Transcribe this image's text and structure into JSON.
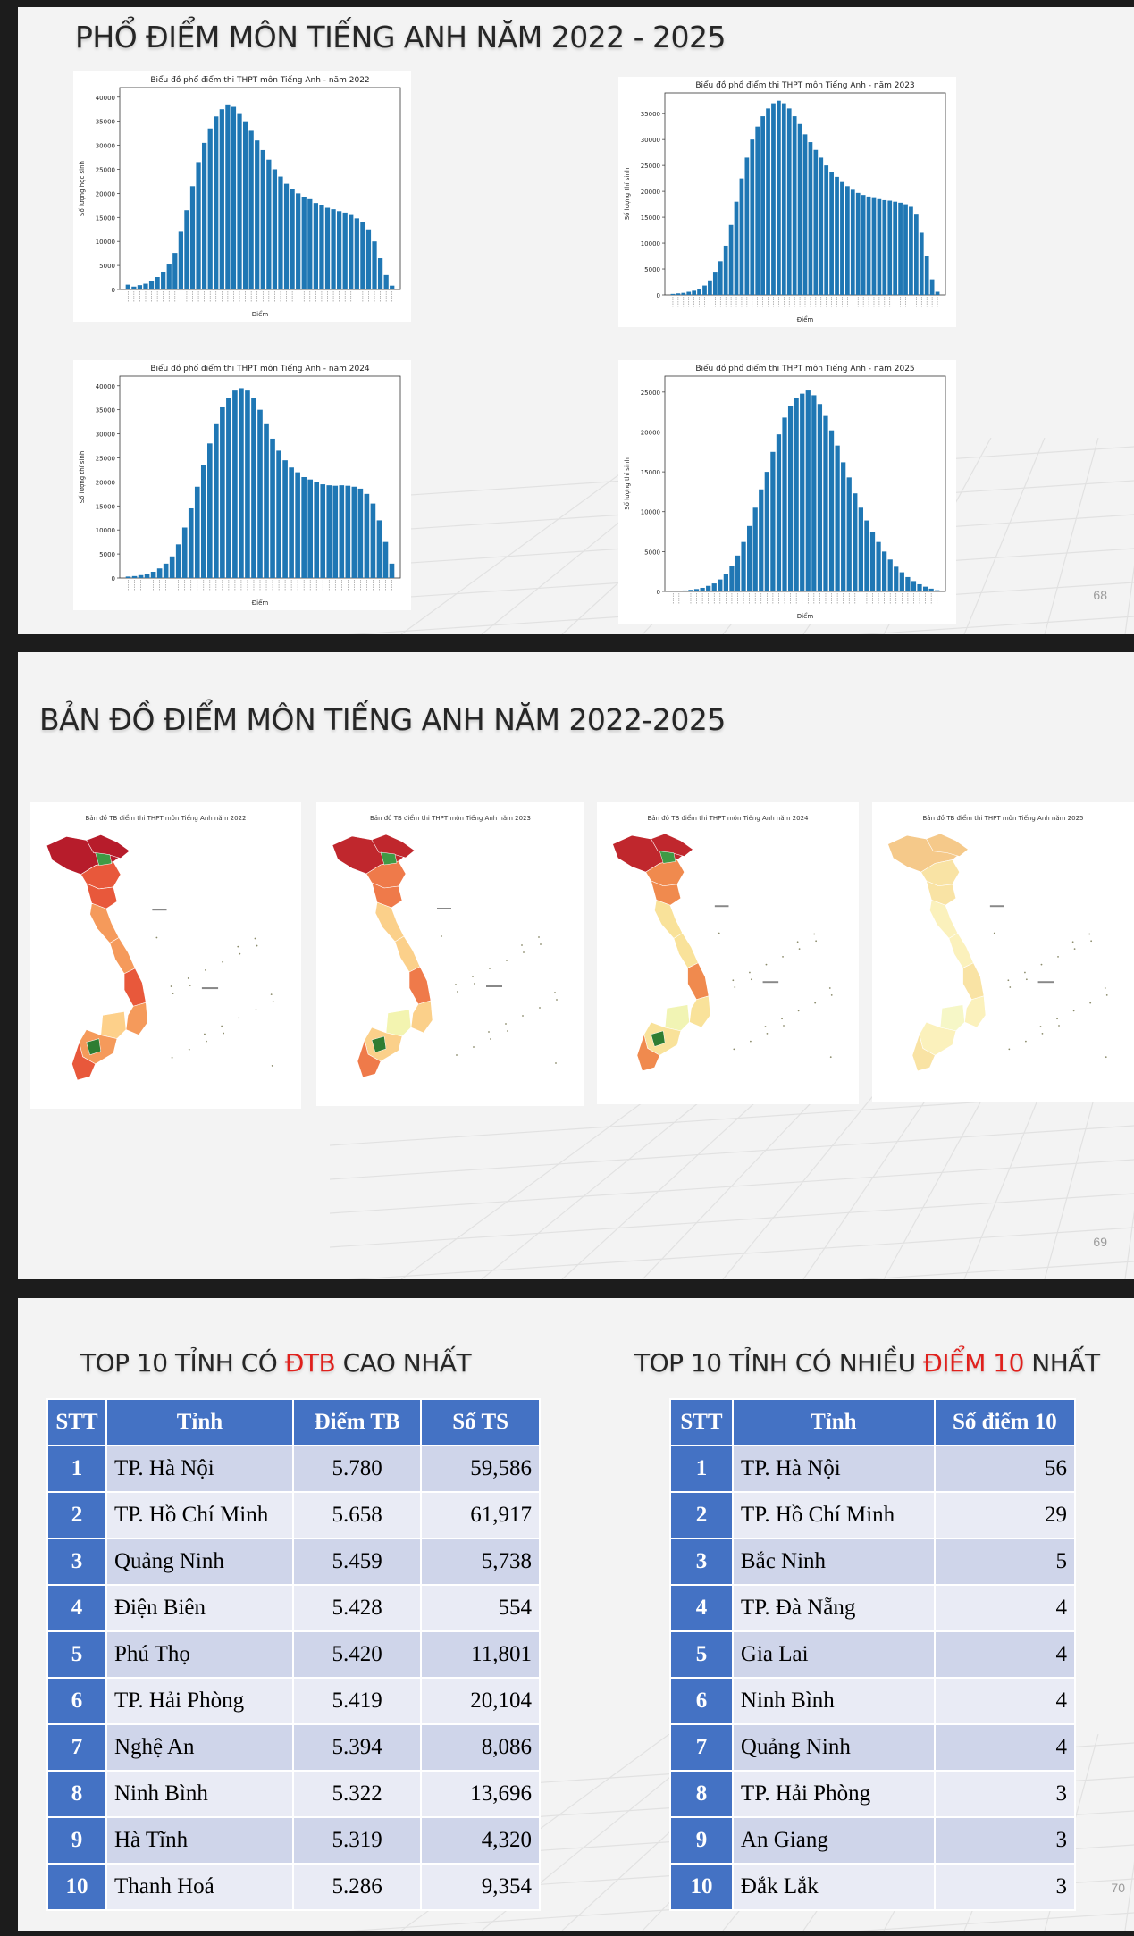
{
  "slide1": {
    "title": "PHỔ ĐIỂM MÔN TIẾNG ANH NĂM 2022 - 2025",
    "page": "68"
  },
  "slide2": {
    "title": "BẢN ĐỒ ĐIỂM MÔN TIẾNG ANH NĂM 2022-2025",
    "page": "69",
    "maps": [
      {
        "title": "Bản đồ TB điểm thi THPT môn Tiếng Anh năm 2022",
        "palette": [
          "#b71c2b",
          "#e8583b",
          "#f59a5b",
          "#fdd08a"
        ]
      },
      {
        "title": "Bản đồ TB điểm thi THPT môn Tiếng Anh năm 2023",
        "palette": [
          "#c0272d",
          "#ef7a4a",
          "#fbd08a",
          "#f3f4b0"
        ]
      },
      {
        "title": "Bản đồ TB điểm thi THPT môn Tiếng Anh năm 2024",
        "palette": [
          "#c0272d",
          "#f08a4e",
          "#f9e29a",
          "#f1f4b4"
        ]
      },
      {
        "title": "Bản đồ TB điểm thi THPT môn Tiếng Anh năm 2025",
        "palette": [
          "#f5c98a",
          "#f9e3a4",
          "#fbf1bc",
          "#f6f7c7"
        ]
      }
    ]
  },
  "slide3": {
    "page": "70",
    "left_title": {
      "pre": "TOP 10 TỈNH CÓ ",
      "hl": "ĐTB",
      "post": " CAO NHẤT"
    },
    "right_title": {
      "pre": "TOP 10 TỈNH CÓ NHIỀU ",
      "hl": "ĐIỂM 10",
      "post": " NHẤT"
    },
    "left_headers": [
      "STT",
      "Tỉnh",
      "Điểm TB",
      "Số TS"
    ],
    "left_rows": [
      [
        "1",
        "TP. Hà Nội",
        "5.780",
        "59,586"
      ],
      [
        "2",
        "TP. Hồ Chí Minh",
        "5.658",
        "61,917"
      ],
      [
        "3",
        "Quảng Ninh",
        "5.459",
        "5,738"
      ],
      [
        "4",
        "Điện Biên",
        "5.428",
        "554"
      ],
      [
        "5",
        "Phú Thọ",
        "5.420",
        "11,801"
      ],
      [
        "6",
        "TP. Hải Phòng",
        "5.419",
        "20,104"
      ],
      [
        "7",
        "Nghệ An",
        "5.394",
        "8,086"
      ],
      [
        "8",
        "Ninh Bình",
        "5.322",
        "13,696"
      ],
      [
        "9",
        "Hà Tĩnh",
        "5.319",
        "4,320"
      ],
      [
        "10",
        "Thanh Hoá",
        "5.286",
        "9,354"
      ]
    ],
    "right_headers": [
      "STT",
      "Tỉnh",
      "Số điểm 10"
    ],
    "right_rows": [
      [
        "1",
        "TP. Hà Nội",
        "56"
      ],
      [
        "2",
        "TP. Hồ Chí Minh",
        "29"
      ],
      [
        "3",
        "Bắc Ninh",
        "5"
      ],
      [
        "4",
        "TP. Đà Nẵng",
        "4"
      ],
      [
        "5",
        "Gia Lai",
        "4"
      ],
      [
        "6",
        "Ninh Bình",
        "4"
      ],
      [
        "7",
        "Quảng Ninh",
        "4"
      ],
      [
        "8",
        "TP. Hải Phòng",
        "3"
      ],
      [
        "9",
        "An Giang",
        "3"
      ],
      [
        "10",
        "Đắk Lắk",
        "3"
      ]
    ]
  },
  "chart_data": [
    {
      "type": "bar",
      "title": "Biểu đồ phổ điểm thi THPT môn Tiếng Anh - năm 2022",
      "xlabel": "Điểm",
      "ylabel": "Số lượng học sinh",
      "ylim": [
        0,
        42000
      ],
      "yticks": [
        0,
        5000,
        10000,
        15000,
        20000,
        25000,
        30000,
        35000,
        40000
      ],
      "color": "#1f77b4",
      "values": [
        1000,
        600,
        900,
        1200,
        1800,
        2600,
        3700,
        5200,
        7600,
        12000,
        16500,
        21500,
        26500,
        30500,
        33500,
        36000,
        37500,
        38500,
        38000,
        36500,
        35000,
        33000,
        31000,
        29000,
        27000,
        25000,
        23500,
        22000,
        21000,
        20000,
        19300,
        18800,
        18000,
        17500,
        17000,
        16700,
        16300,
        16000,
        15500,
        14800,
        14000,
        12500,
        10000,
        6500,
        3000,
        800
      ]
    },
    {
      "type": "bar",
      "title": "Biểu đồ phổ điểm thi THPT môn Tiếng Anh - năm 2023",
      "xlabel": "Điểm",
      "ylabel": "Số lượng thí sinh",
      "ylim": [
        0,
        39000
      ],
      "yticks": [
        0,
        5000,
        10000,
        15000,
        20000,
        25000,
        30000,
        35000
      ],
      "color": "#1f77b4",
      "values": [
        200,
        300,
        400,
        600,
        800,
        1200,
        1800,
        2800,
        4300,
        6500,
        9500,
        13500,
        18000,
        22500,
        26500,
        30000,
        32500,
        34500,
        36000,
        37000,
        37500,
        37000,
        36000,
        34500,
        33000,
        31000,
        29500,
        28000,
        26500,
        25000,
        23800,
        22800,
        21800,
        21000,
        20300,
        19700,
        19300,
        19000,
        18700,
        18500,
        18300,
        18200,
        18000,
        17800,
        17500,
        17000,
        15500,
        12000,
        7500,
        3000,
        600
      ]
    },
    {
      "type": "bar",
      "title": "Biểu đồ phổ điểm thi THPT môn Tiếng Anh - năm 2024",
      "xlabel": "Điểm",
      "ylabel": "Số lượng thí sinh",
      "ylim": [
        0,
        42000
      ],
      "yticks": [
        0,
        5000,
        10000,
        15000,
        20000,
        25000,
        30000,
        35000,
        40000
      ],
      "color": "#1f77b4",
      "values": [
        300,
        400,
        600,
        900,
        1300,
        2000,
        3000,
        4500,
        7000,
        10500,
        14500,
        19000,
        23500,
        28000,
        32000,
        35500,
        37500,
        39000,
        39500,
        39000,
        37500,
        35000,
        32000,
        29000,
        26500,
        24500,
        23000,
        22000,
        21000,
        20500,
        20000,
        19500,
        19300,
        19200,
        19300,
        19200,
        19000,
        18600,
        17500,
        15500,
        12000,
        7500,
        3000
      ]
    },
    {
      "type": "bar",
      "title": "Biểu đồ phổ điểm thi THPT môn Tiếng Anh - năm 2025",
      "xlabel": "Điểm",
      "ylabel": "Số lượng thí sinh",
      "ylim": [
        0,
        27000
      ],
      "yticks": [
        0,
        5000,
        10000,
        15000,
        20000,
        25000
      ],
      "color": "#1f77b4",
      "values": [
        50,
        80,
        120,
        200,
        300,
        450,
        700,
        1000,
        1500,
        2200,
        3200,
        4500,
        6200,
        8200,
        10500,
        12800,
        15000,
        17500,
        19700,
        21800,
        23300,
        24300,
        24800,
        25200,
        24600,
        23500,
        22000,
        20200,
        18300,
        16200,
        14300,
        12300,
        10500,
        8900,
        7500,
        6200,
        5000,
        4000,
        3100,
        2400,
        1800,
        1300,
        900,
        600,
        350,
        150
      ]
    }
  ]
}
